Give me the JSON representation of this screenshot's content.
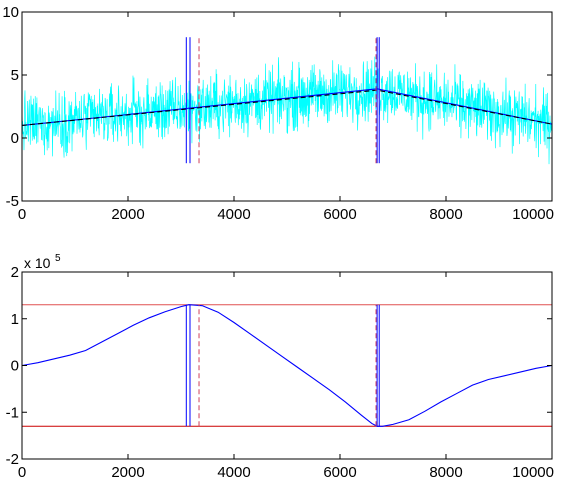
{
  "chart_data": [
    {
      "type": "line",
      "xlim": [
        0,
        10000
      ],
      "ylim": [
        -5,
        10
      ],
      "xticks": [
        "0",
        "2000",
        "4000",
        "6000",
        "8000",
        "10000"
      ],
      "yticks": [
        "-5",
        "0",
        "5",
        "10"
      ],
      "xtick_values": [
        0,
        2000,
        4000,
        6000,
        8000,
        10000
      ],
      "ytick_values": [
        -5,
        0,
        5,
        10
      ],
      "grid": false,
      "noise": {
        "color": "#00ffff",
        "amplitude": 2.0
      },
      "series": [
        {
          "x": [
            0,
            6700,
            10000
          ],
          "y": [
            1.0,
            3.9,
            1.1
          ],
          "color": "#0000ff",
          "style": "solid"
        },
        {
          "x": [
            0,
            6700,
            10000
          ],
          "y": [
            1.0,
            3.8,
            1.1
          ],
          "color": "#000000",
          "style": "dashed"
        }
      ],
      "vlines": [
        {
          "x": 3100,
          "y0": -2,
          "y1": 8,
          "color": "#0000ff",
          "style": "solid"
        },
        {
          "x": 3170,
          "y0": -2,
          "y1": 8,
          "color": "#0000ff",
          "style": "solid"
        },
        {
          "x": 3340,
          "y0": -2,
          "y1": 8,
          "color": "#d0405a",
          "style": "dashed"
        },
        {
          "x": 6680,
          "y0": -2,
          "y1": 8,
          "color": "#d0405a",
          "style": "dashed"
        },
        {
          "x": 6700,
          "y0": -2,
          "y1": 8,
          "color": "#0000ff",
          "style": "solid"
        },
        {
          "x": 6740,
          "y0": -2,
          "y1": 8,
          "color": "#0000ff",
          "style": "solid"
        }
      ],
      "hlines": []
    },
    {
      "type": "line",
      "xlim": [
        0,
        10000
      ],
      "ylim": [
        -2,
        2
      ],
      "xticks": [
        "0",
        "2000",
        "4000",
        "6000",
        "8000",
        "10000"
      ],
      "yticks": [
        "-2",
        "-1",
        "0",
        "1",
        "2"
      ],
      "xtick_values": [
        0,
        2000,
        4000,
        6000,
        8000,
        10000
      ],
      "ytick_values": [
        -2,
        -1,
        0,
        1,
        2
      ],
      "ymultiplier_base": "x 10",
      "ymultiplier_exp": "5",
      "grid": false,
      "series": [
        {
          "color": "#0000ff",
          "style": "solid",
          "x": [
            0,
            300,
            600,
            900,
            1200,
            1500,
            1800,
            2100,
            2400,
            2700,
            3000,
            3150,
            3400,
            3700,
            4000,
            4300,
            4600,
            4900,
            5200,
            5500,
            5800,
            6100,
            6400,
            6600,
            6700,
            6800,
            7000,
            7300,
            7600,
            7900,
            8200,
            8500,
            8800,
            9100,
            9400,
            9700,
            10000
          ],
          "y": [
            0.0,
            0.06,
            0.14,
            0.22,
            0.32,
            0.5,
            0.68,
            0.86,
            1.02,
            1.15,
            1.26,
            1.3,
            1.28,
            1.14,
            0.92,
            0.68,
            0.44,
            0.2,
            -0.04,
            -0.28,
            -0.52,
            -0.78,
            -1.06,
            -1.24,
            -1.3,
            -1.3,
            -1.26,
            -1.16,
            -0.98,
            -0.78,
            -0.6,
            -0.42,
            -0.3,
            -0.22,
            -0.14,
            -0.06,
            0.0
          ]
        }
      ],
      "vlines": [
        {
          "x": 3100,
          "y0": -1.3,
          "y1": 1.3,
          "color": "#0000ff",
          "style": "solid"
        },
        {
          "x": 3170,
          "y0": -1.3,
          "y1": 1.3,
          "color": "#0000ff",
          "style": "solid"
        },
        {
          "x": 3340,
          "y0": -1.3,
          "y1": 1.3,
          "color": "#d0405a",
          "style": "dashed"
        },
        {
          "x": 6680,
          "y0": -1.3,
          "y1": 1.3,
          "color": "#d0405a",
          "style": "dashed"
        },
        {
          "x": 6700,
          "y0": -1.3,
          "y1": 1.3,
          "color": "#0000ff",
          "style": "solid"
        },
        {
          "x": 6740,
          "y0": -1.3,
          "y1": 1.3,
          "color": "#0000ff",
          "style": "solid"
        }
      ],
      "hlines": [
        {
          "y": 1.3,
          "color": "#e05050",
          "style": "solid"
        },
        {
          "y": -1.3,
          "color": "#cc0000",
          "style": "solid"
        }
      ]
    }
  ]
}
